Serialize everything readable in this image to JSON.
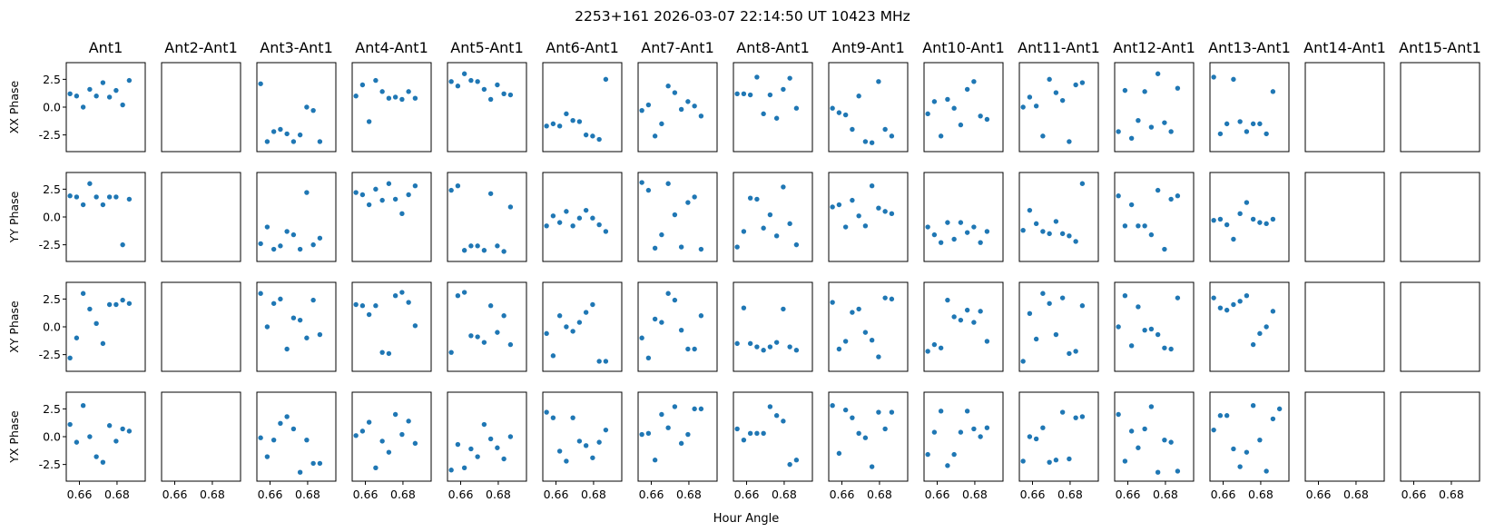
{
  "figure": {
    "title": "2253+161  2026-03-07 22:14:50 UT  10423 MHz",
    "xlabel": "Hour Angle"
  },
  "chart_data": {
    "type": "scatter",
    "layout": "grid of small multiples (4 rows x 15 columns), shared axes",
    "title": "2253+161  2026-03-07 22:14:50 UT  10423 MHz",
    "xlabel": "Hour Angle",
    "xlim": [
      0.653,
      0.695
    ],
    "ylim": [
      -4.0,
      4.0
    ],
    "xticks": [
      0.66,
      0.68
    ],
    "xtick_labels": [
      "0.66",
      "0.68"
    ],
    "yticks": [
      2.5,
      0.0,
      -2.5
    ],
    "ytick_labels": [
      "2.5",
      "0.0",
      "-2.5"
    ],
    "grid": false,
    "legend": "none",
    "marker_color": "#1f77b4",
    "x": [
      0.655,
      0.6585,
      0.662,
      0.6655,
      0.669,
      0.6725,
      0.676,
      0.6795,
      0.683,
      0.6865,
      0.69,
      0.6935
    ],
    "columns": [
      "Ant1",
      "Ant2-Ant1",
      "Ant3-Ant1",
      "Ant4-Ant1",
      "Ant5-Ant1",
      "Ant6-Ant1",
      "Ant7-Ant1",
      "Ant8-Ant1",
      "Ant9-Ant1",
      "Ant10-Ant1",
      "Ant11-Ant1",
      "Ant12-Ant1",
      "Ant13-Ant1",
      "Ant14-Ant1",
      "Ant15-Ant1"
    ],
    "rows": [
      "XX Phase",
      "YY Phase",
      "XY Phase",
      "YX Phase"
    ],
    "panels": {
      "XX Phase": [
        [
          1.2,
          1.0,
          0.0,
          1.6,
          1.0,
          2.2,
          0.9,
          1.5,
          0.2,
          2.4
        ],
        null,
        [
          2.1,
          -3.1,
          -2.2,
          -2.0,
          -2.4,
          -3.1,
          -2.5,
          0.0,
          -0.3,
          -3.1
        ],
        [
          1.0,
          2.0,
          -1.3,
          2.4,
          1.4,
          0.8,
          0.9,
          0.7,
          1.4,
          0.8
        ],
        [
          2.3,
          1.9,
          3.0,
          2.4,
          2.3,
          1.6,
          0.7,
          2.0,
          1.2,
          1.1
        ],
        [
          -1.7,
          -1.5,
          -1.7,
          -0.6,
          -1.2,
          -1.3,
          -2.5,
          -2.6,
          -2.9,
          2.5
        ],
        [
          -0.3,
          0.2,
          -2.6,
          -1.5,
          1.9,
          1.3,
          -0.2,
          0.5,
          0.1,
          -0.8
        ],
        [
          1.2,
          1.2,
          1.1,
          2.7,
          -0.6,
          1.1,
          -1.0,
          1.6,
          2.6,
          -0.1
        ],
        [
          -0.1,
          -0.5,
          -0.7,
          -2.0,
          1.0,
          -3.1,
          -3.2,
          2.3,
          -2.0,
          -2.6
        ],
        [
          -0.6,
          0.5,
          -2.6,
          0.7,
          -0.1,
          -1.6,
          1.6,
          2.3,
          -0.8,
          -1.1
        ],
        [
          0.0,
          0.9,
          0.1,
          -2.6,
          2.5,
          1.3,
          0.6,
          -3.1,
          2.0,
          2.2
        ],
        [
          -2.2,
          1.5,
          -2.8,
          -1.2,
          1.4,
          -1.8,
          3.0,
          -1.4,
          -2.2,
          1.7
        ],
        [
          2.7,
          -2.4,
          -1.5,
          2.5,
          -1.3,
          -2.2,
          -1.5,
          -1.5,
          -2.4,
          1.4
        ],
        null,
        null
      ],
      "YY Phase": [
        [
          1.9,
          1.8,
          1.1,
          3.0,
          1.8,
          1.1,
          1.8,
          1.8,
          -2.5,
          1.6
        ],
        null,
        [
          -2.4,
          -0.9,
          -2.9,
          -2.6,
          -1.3,
          -1.6,
          -2.9,
          2.2,
          -2.5,
          -1.9
        ],
        [
          2.2,
          2.0,
          1.1,
          2.5,
          1.5,
          3.0,
          1.6,
          0.3,
          2.0,
          2.8
        ],
        [
          2.4,
          2.8,
          -3.0,
          -2.6,
          -2.6,
          -3.0,
          2.1,
          -2.6,
          -3.1,
          0.9
        ],
        [
          -0.8,
          0.1,
          -0.5,
          0.5,
          -0.8,
          -0.1,
          0.6,
          -0.1,
          -0.7,
          -1.3
        ],
        [
          3.1,
          2.4,
          -2.8,
          -1.6,
          3.0,
          0.2,
          -2.7,
          1.3,
          1.8,
          -2.9
        ],
        [
          -2.7,
          -1.3,
          1.7,
          1.6,
          -1.0,
          0.2,
          -1.7,
          2.7,
          -0.6,
          -2.5
        ],
        [
          0.9,
          1.1,
          -0.9,
          1.5,
          0.1,
          -0.8,
          2.8,
          0.8,
          0.5,
          0.3
        ],
        [
          -0.9,
          -1.6,
          -2.3,
          -0.5,
          -2.0,
          -0.5,
          -1.4,
          -0.9,
          -2.3,
          -1.3
        ],
        [
          -1.2,
          0.6,
          -0.6,
          -1.3,
          -1.5,
          -0.4,
          -1.5,
          -1.7,
          -2.2,
          3.0
        ],
        [
          1.9,
          -0.8,
          1.1,
          -0.8,
          -0.8,
          -1.6,
          2.4,
          -2.9,
          1.6,
          1.9
        ],
        [
          -0.3,
          -0.2,
          -0.7,
          -2.0,
          0.3,
          1.3,
          -0.2,
          -0.5,
          -0.6,
          -0.2
        ],
        null,
        null
      ],
      "XY Phase": [
        [
          -2.8,
          -1.0,
          3.0,
          1.6,
          0.3,
          -1.5,
          2.0,
          2.0,
          2.4,
          2.1
        ],
        null,
        [
          3.0,
          0.0,
          2.1,
          2.5,
          -2.0,
          0.8,
          0.6,
          -1.0,
          2.4,
          -0.7
        ],
        [
          2.0,
          1.9,
          1.1,
          1.9,
          -2.3,
          -2.4,
          2.8,
          3.1,
          2.2,
          0.1
        ],
        [
          -2.3,
          2.8,
          3.1,
          -0.8,
          -0.9,
          -1.4,
          1.9,
          -0.5,
          1.0,
          -1.6
        ],
        [
          -0.6,
          -2.6,
          1.0,
          0.0,
          -0.4,
          0.4,
          1.3,
          2.0,
          -3.1,
          -3.1
        ],
        [
          -1.0,
          -2.8,
          0.7,
          0.4,
          3.0,
          2.4,
          -0.3,
          -2.0,
          -2.0,
          1.0
        ],
        [
          -1.5,
          1.7,
          -1.5,
          -1.8,
          -2.1,
          -1.8,
          -1.4,
          1.6,
          -1.8,
          -2.1
        ],
        [
          2.2,
          -2.0,
          -1.3,
          1.3,
          1.6,
          -0.5,
          -1.2,
          -2.7,
          2.6,
          2.5
        ],
        [
          -2.2,
          -1.6,
          -1.9,
          2.4,
          0.9,
          0.6,
          1.5,
          0.4,
          1.4,
          -1.3
        ],
        [
          -3.1,
          1.2,
          -1.1,
          3.0,
          2.1,
          -0.7,
          2.6,
          -2.4,
          -2.2,
          1.9
        ],
        [
          0.0,
          2.8,
          -1.7,
          1.8,
          -0.3,
          -0.2,
          -0.7,
          -1.9,
          -2.0,
          2.6
        ],
        [
          2.6,
          1.7,
          1.5,
          2.0,
          2.3,
          2.8,
          -1.6,
          -0.6,
          0.0,
          1.4
        ],
        null,
        null
      ],
      "YX Phase": [
        [
          1.1,
          -0.5,
          2.8,
          0.0,
          -1.8,
          -2.3,
          1.0,
          -0.4,
          0.7,
          0.5
        ],
        null,
        [
          -0.1,
          -1.8,
          -0.3,
          1.2,
          1.8,
          0.7,
          -3.2,
          -0.3,
          -2.4,
          -2.4
        ],
        [
          0.1,
          0.5,
          1.3,
          -2.8,
          -0.4,
          -1.4,
          2.0,
          0.2,
          1.4,
          -0.6
        ],
        [
          -3.0,
          -0.7,
          -2.8,
          -1.1,
          -1.8,
          1.1,
          -0.2,
          -1.0,
          -2.0,
          0.0
        ],
        [
          2.2,
          1.7,
          -1.3,
          -2.2,
          1.7,
          -0.4,
          -0.8,
          -1.9,
          -0.5,
          0.6
        ],
        [
          0.2,
          0.3,
          -2.1,
          2.0,
          0.8,
          2.7,
          -0.6,
          0.2,
          2.5,
          2.5
        ],
        [
          0.7,
          -0.3,
          0.3,
          0.3,
          0.3,
          2.7,
          1.9,
          1.4,
          -2.5,
          -2.1
        ],
        [
          2.8,
          -1.5,
          2.4,
          1.7,
          0.3,
          -0.1,
          -2.7,
          2.2,
          0.7,
          2.2
        ],
        [
          -1.6,
          0.4,
          2.3,
          -2.6,
          -1.6,
          0.4,
          2.3,
          0.7,
          0.0,
          0.8
        ],
        [
          -2.2,
          0.0,
          -0.2,
          0.8,
          -2.3,
          -2.1,
          2.2,
          -2.0,
          1.7,
          1.8
        ],
        [
          2.0,
          -2.2,
          0.5,
          -1.0,
          0.7,
          2.7,
          -3.2,
          -0.3,
          -0.5,
          -3.1
        ],
        [
          0.6,
          1.9,
          1.9,
          -1.1,
          -2.7,
          -1.4,
          2.8,
          -0.3,
          -3.1,
          1.6,
          2.5
        ],
        null,
        null
      ]
    }
  }
}
